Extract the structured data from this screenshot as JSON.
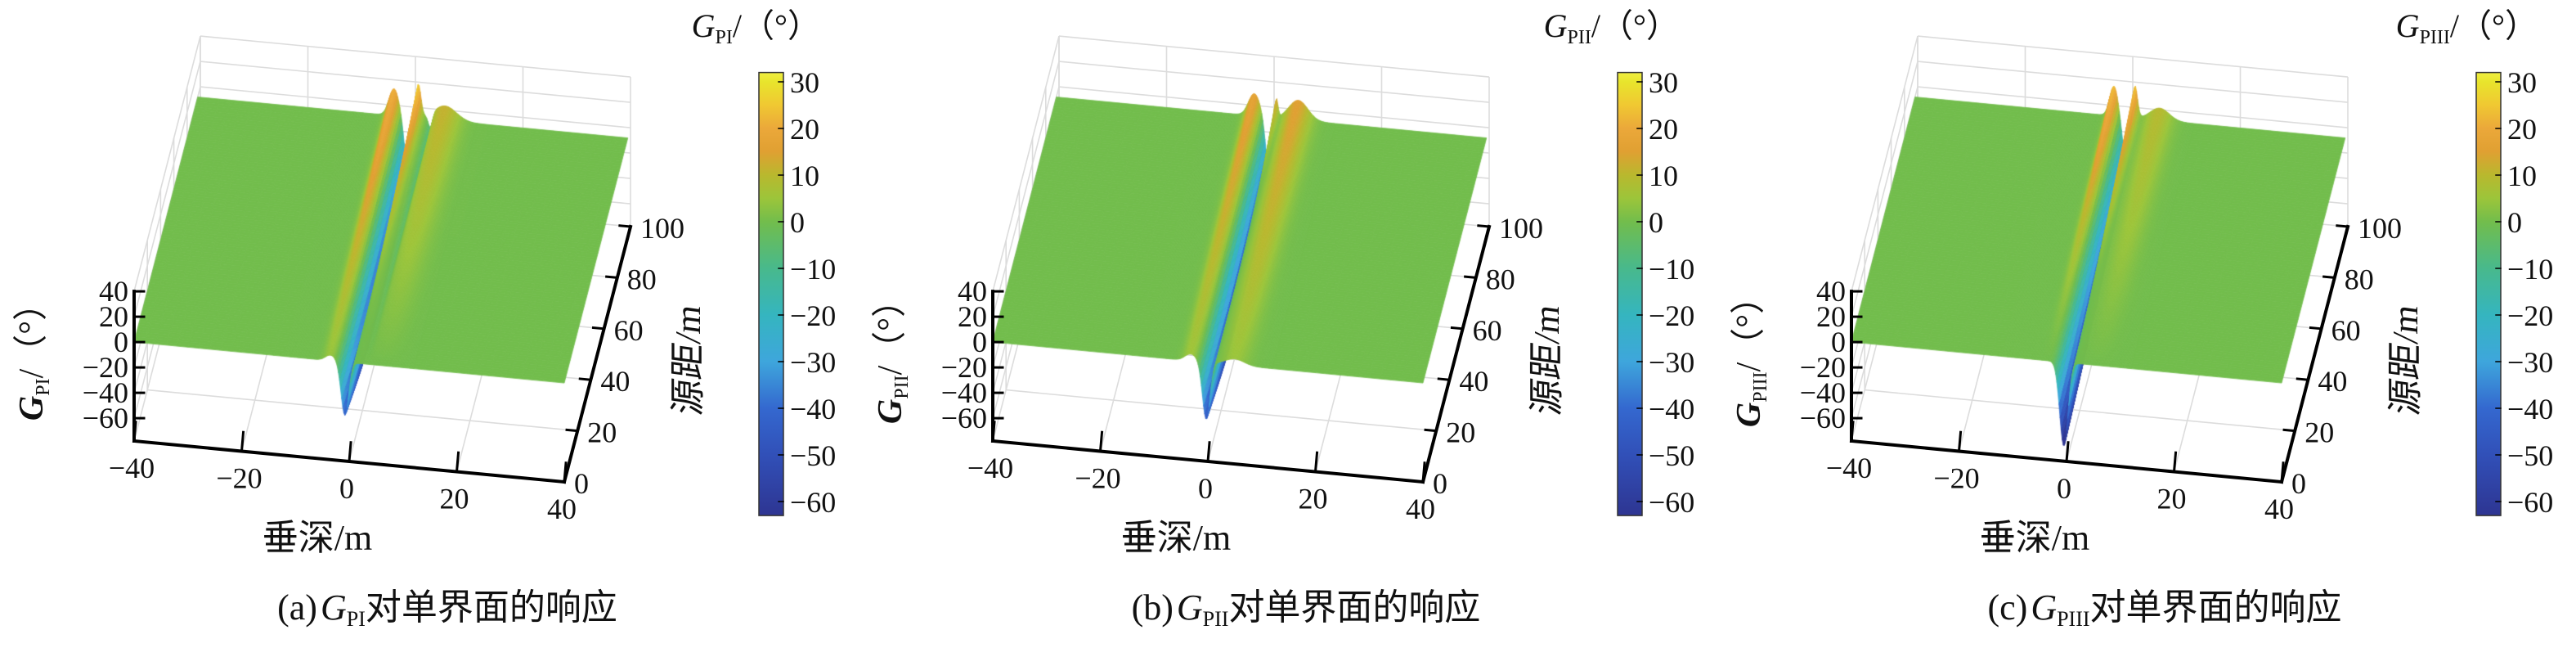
{
  "colormap": [
    {
      "v": -63,
      "c": "#2e3592"
    },
    {
      "v": -50,
      "c": "#3150b8"
    },
    {
      "v": -40,
      "c": "#3468cf"
    },
    {
      "v": -30,
      "c": "#3ea6dc"
    },
    {
      "v": -20,
      "c": "#35b5bf"
    },
    {
      "v": -10,
      "c": "#48b98c"
    },
    {
      "v": 0,
      "c": "#72bd4c"
    },
    {
      "v": 5,
      "c": "#9cc53a"
    },
    {
      "v": 10,
      "c": "#b9b82e"
    },
    {
      "v": 15,
      "c": "#e0a032"
    },
    {
      "v": 20,
      "c": "#eba83a"
    },
    {
      "v": 25,
      "c": "#f0c832"
    },
    {
      "v": 30,
      "c": "#e8e52c"
    },
    {
      "v": 32,
      "c": "#f0ee40"
    }
  ],
  "chart_data": [
    {
      "type": "surface",
      "caption_prefix": "(a)",
      "symbol": "G",
      "subscript": "PI",
      "caption_suffix": "对单界面的响应",
      "unit_suffix": "/（°）",
      "xlabel": "垂深/m",
      "ylabel": "源距/m",
      "xlim": [
        -40,
        40
      ],
      "ylim": [
        0,
        100
      ],
      "zlim": [
        -78,
        40
      ],
      "xticks": [
        "−40",
        "−20",
        "0",
        "20",
        "40"
      ],
      "xtick_values": [
        -40,
        -20,
        0,
        20,
        40
      ],
      "yticks": [
        "0",
        "20",
        "40",
        "60",
        "80",
        "100"
      ],
      "ytick_values": [
        0,
        20,
        40,
        60,
        80,
        100
      ],
      "zticks": [
        "40",
        "20",
        "0",
        "−20",
        "−40",
        "−60"
      ],
      "ztick_values": [
        40,
        20,
        0,
        -20,
        -40,
        -60
      ],
      "colorbar_ticks": [
        "30",
        "20",
        "10",
        "0",
        "−10",
        "−20",
        "−30",
        "−40",
        "−50",
        "−60"
      ],
      "colorbar_tick_values": [
        30,
        20,
        10,
        0,
        -10,
        -20,
        -30,
        -40,
        -50,
        -60
      ],
      "clim": [
        -63,
        32
      ],
      "approx_max": 30,
      "approx_min": -60
    },
    {
      "type": "surface",
      "caption_prefix": "(b)",
      "symbol": "G",
      "subscript": "PII",
      "caption_suffix": "对单界面的响应",
      "unit_suffix": "/（°）",
      "xlabel": "垂深/m",
      "ylabel": "源距/m",
      "xlim": [
        -40,
        40
      ],
      "ylim": [
        0,
        100
      ],
      "zlim": [
        -78,
        40
      ],
      "xticks": [
        "−40",
        "−20",
        "0",
        "20",
        "40"
      ],
      "xtick_values": [
        -40,
        -20,
        0,
        20,
        40
      ],
      "yticks": [
        "0",
        "20",
        "40",
        "60",
        "80",
        "100"
      ],
      "ytick_values": [
        0,
        20,
        40,
        60,
        80,
        100
      ],
      "zticks": [
        "40",
        "20",
        "0",
        "−20",
        "−40",
        "−60"
      ],
      "ztick_values": [
        40,
        20,
        0,
        -20,
        -40,
        -60
      ],
      "colorbar_ticks": [
        "30",
        "20",
        "10",
        "0",
        "−10",
        "−20",
        "−30",
        "−40",
        "−50",
        "−60"
      ],
      "colorbar_tick_values": [
        30,
        20,
        10,
        0,
        -10,
        -20,
        -30,
        -40,
        -50,
        -60
      ],
      "clim": [
        -63,
        32
      ],
      "approx_max": 30,
      "approx_min": -60
    },
    {
      "type": "surface",
      "caption_prefix": "(c)",
      "symbol": "G",
      "subscript": "PIII",
      "caption_suffix": "对单界面的响应",
      "unit_suffix": "/（°）",
      "xlabel": "垂深/m",
      "ylabel": "源距/m",
      "xlim": [
        -40,
        40
      ],
      "ylim": [
        0,
        100
      ],
      "zlim": [
        -78,
        40
      ],
      "xticks": [
        "−40",
        "−20",
        "0",
        "20",
        "40"
      ],
      "xtick_values": [
        -40,
        -20,
        0,
        20,
        40
      ],
      "yticks": [
        "0",
        "20",
        "40",
        "60",
        "80",
        "100"
      ],
      "ytick_values": [
        0,
        20,
        40,
        60,
        80,
        100
      ],
      "zticks": [
        "40",
        "20",
        "0",
        "−20",
        "−40",
        "−60"
      ],
      "ztick_values": [
        40,
        20,
        0,
        -20,
        -40,
        -60
      ],
      "colorbar_ticks": [
        "30",
        "20",
        "10",
        "0",
        "−10",
        "−20",
        "−30",
        "−40",
        "−50",
        "−60"
      ],
      "colorbar_tick_values": [
        30,
        20,
        10,
        0,
        -10,
        -20,
        -30,
        -40,
        -50,
        -60
      ],
      "clim": [
        -63,
        32
      ],
      "approx_max": 35,
      "approx_min": -65
    }
  ]
}
